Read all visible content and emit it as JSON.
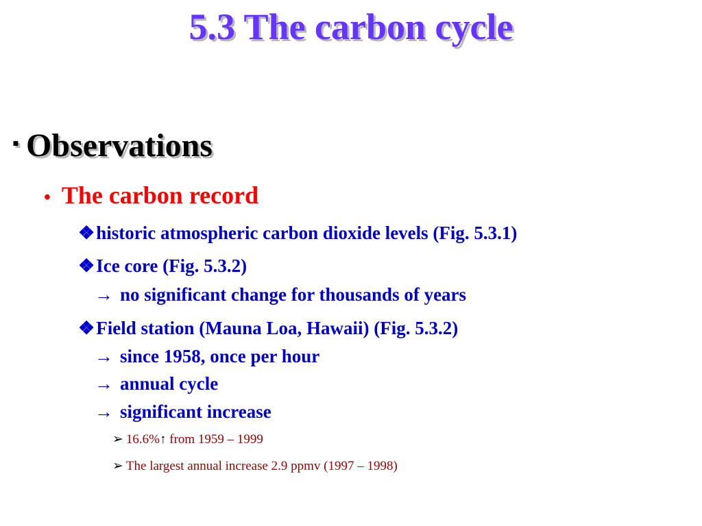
{
  "title": "5.3 The carbon cycle",
  "section": {
    "bullet": "▪",
    "heading": "Observations",
    "subheading": "The carbon record",
    "items": [
      {
        "label": "historic atmospheric carbon dioxide levels (Fig. 5.3.1)"
      },
      {
        "label": "Ice core (Fig. 5.3.2)",
        "sub": [
          "no significant change for thousands of years"
        ]
      },
      {
        "label": "Field station (Mauna Loa, Hawaii) (Fig. 5.3.2)",
        "sub": [
          "since 1958, once per hour",
          "annual cycle",
          "significant increase"
        ]
      }
    ],
    "details": [
      "16.6%",
      "from 1959 – 1999",
      "The largest annual increase 2.9 ppmv (1997 – 1998)"
    ]
  },
  "icons": {
    "diamond": "❖",
    "arrow": "→",
    "triangle": "➢",
    "up_arrow": "↑"
  },
  "colors": {
    "title": "#6633ff",
    "level2": "#ff0000",
    "level3": "#0000cc",
    "level4": "#990000"
  }
}
